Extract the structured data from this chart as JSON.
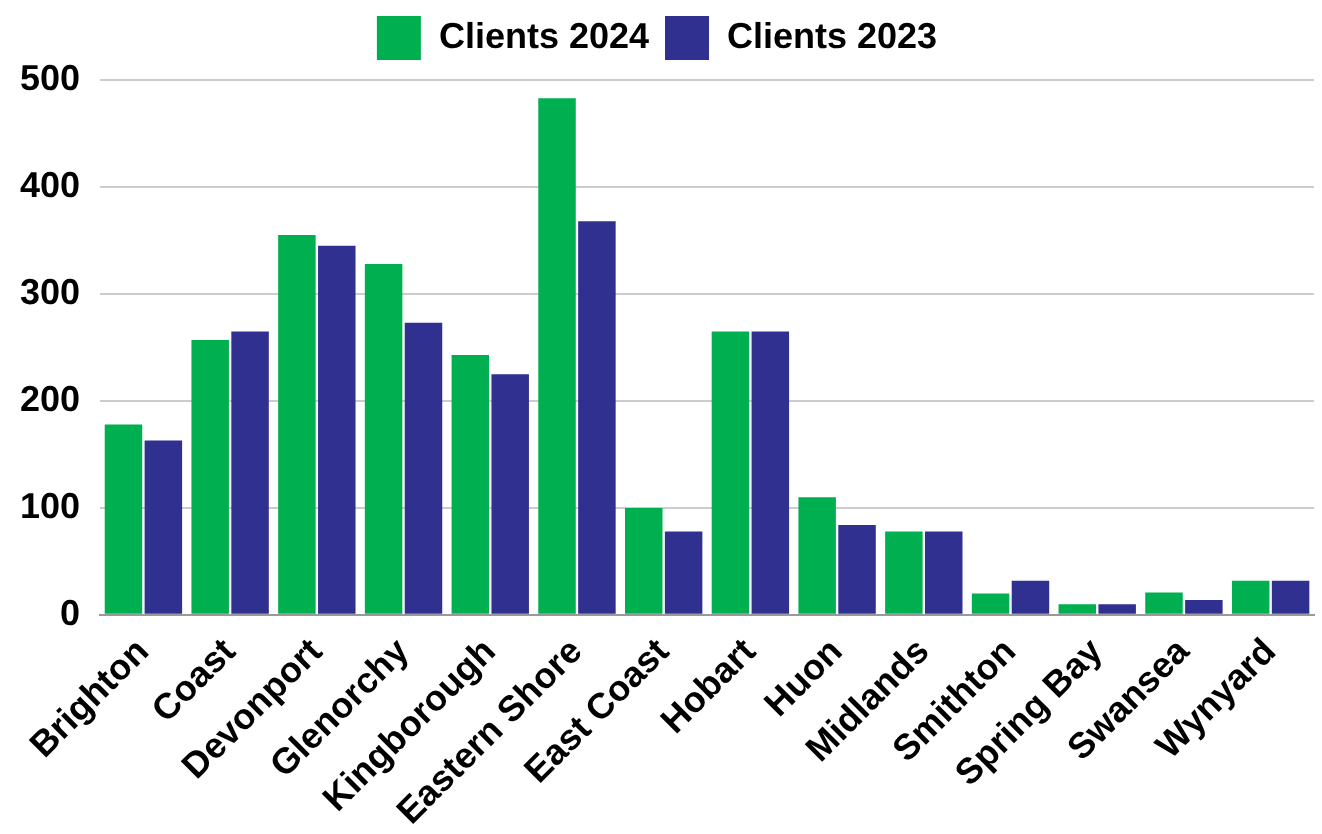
{
  "chart_data": {
    "type": "bar",
    "categories": [
      "Brighton",
      "Coast",
      "Devonport",
      "Glenorchy",
      "Kingborough",
      "Eastern Shore",
      "East Coast",
      "Hobart",
      "Huon",
      "Midlands",
      "Smithton",
      "Spring Bay",
      "Swansea",
      "Wynyard"
    ],
    "series": [
      {
        "name": "Clients 2024",
        "color": "#00b050",
        "values": [
          178,
          257,
          355,
          328,
          243,
          483,
          100,
          265,
          110,
          78,
          20,
          10,
          21,
          32
        ]
      },
      {
        "name": "Clients 2023",
        "color": "#303090",
        "values": [
          163,
          265,
          345,
          273,
          225,
          368,
          78,
          265,
          84,
          78,
          32,
          10,
          14,
          32
        ]
      }
    ],
    "ylim": [
      0,
      500
    ],
    "yticks": [
      0,
      100,
      200,
      300,
      400,
      500
    ],
    "grid": "y",
    "legend": "top"
  }
}
